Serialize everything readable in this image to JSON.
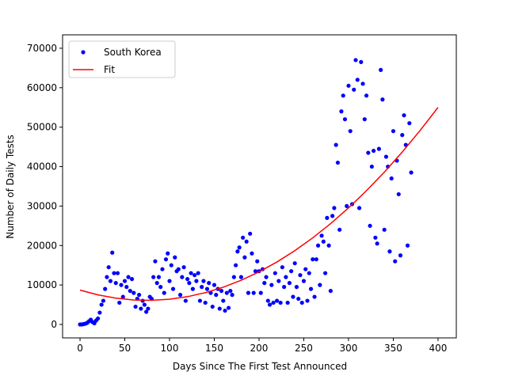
{
  "chart_data": {
    "type": "scatter",
    "xlabel": "Days Since The First Test Announced",
    "ylabel": "Number of Daily Tests",
    "xlim": [
      -19.5,
      420.4
    ],
    "ylim": [
      -3410,
      73400
    ],
    "xticks": [
      0,
      50,
      100,
      150,
      200,
      250,
      300,
      350,
      400
    ],
    "yticks": [
      0,
      10000,
      20000,
      30000,
      40000,
      50000,
      60000,
      70000
    ],
    "legend": "upper left",
    "series": [
      {
        "name": "South Korea",
        "color": "#0000ff",
        "type": "scatter",
        "x": [
          0,
          2,
          4,
          6,
          8,
          10,
          12,
          14,
          16,
          18,
          20,
          22,
          24,
          26,
          28,
          30,
          32,
          34,
          36,
          38,
          40,
          42,
          44,
          46,
          48,
          50,
          52,
          54,
          56,
          58,
          60,
          62,
          64,
          66,
          68,
          70,
          72,
          74,
          76,
          78,
          80,
          82,
          84,
          86,
          88,
          90,
          92,
          94,
          96,
          98,
          100,
          102,
          104,
          106,
          108,
          110,
          112,
          114,
          116,
          118,
          120,
          122,
          124,
          126,
          128,
          130,
          132,
          134,
          136,
          138,
          140,
          142,
          144,
          146,
          148,
          150,
          152,
          154,
          156,
          158,
          160,
          162,
          164,
          166,
          168,
          170,
          172,
          174,
          176,
          178,
          180,
          182,
          184,
          186,
          188,
          190,
          192,
          194,
          196,
          198,
          200,
          202,
          204,
          206,
          208,
          210,
          212,
          214,
          216,
          218,
          220,
          222,
          224,
          226,
          228,
          230,
          232,
          234,
          236,
          238,
          240,
          242,
          244,
          246,
          248,
          250,
          252,
          254,
          256,
          258,
          260,
          262,
          264,
          266,
          268,
          270,
          272,
          274,
          276,
          278,
          280,
          282,
          284,
          286,
          288,
          290,
          292,
          294,
          296,
          298,
          300,
          302,
          304,
          306,
          308,
          310,
          312,
          314,
          316,
          318,
          320,
          322,
          324,
          326,
          328,
          330,
          332,
          334,
          336,
          338,
          340,
          342,
          344,
          346,
          348,
          350,
          352,
          354,
          356,
          358,
          360,
          362,
          364,
          366,
          368,
          370
        ],
        "values": [
          0,
          0,
          100,
          200,
          400,
          800,
          1200,
          600,
          300,
          1000,
          1500,
          3000,
          5000,
          6000,
          9000,
          12000,
          14500,
          11000,
          18200,
          13000,
          10500,
          13000,
          5500,
          10000,
          7000,
          11000,
          9500,
          12000,
          8500,
          11500,
          8000,
          4500,
          6500,
          7500,
          4000,
          6000,
          5000,
          3200,
          4000,
          7000,
          6500,
          12000,
          16000,
          10500,
          12000,
          9500,
          14000,
          8000,
          16500,
          18000,
          11000,
          15000,
          9000,
          17000,
          13500,
          14000,
          7500,
          12000,
          14500,
          6000,
          11500,
          10500,
          13000,
          9000,
          12500,
          11000,
          13000,
          6000,
          9500,
          11000,
          5500,
          9000,
          10500,
          8000,
          4500,
          10000,
          7500,
          9000,
          4000,
          8500,
          6000,
          3500,
          8000,
          4200,
          8500,
          7500,
          12000,
          15000,
          18500,
          19500,
          12000,
          22000,
          17000,
          21000,
          8000,
          23000,
          18000,
          8000,
          13500,
          16000,
          13500,
          8000,
          14000,
          10500,
          12000,
          6000,
          5000,
          10000,
          5500,
          13000,
          6000,
          11000,
          5500,
          14500,
          9500,
          12000,
          5500,
          10500,
          13500,
          7000,
          15500,
          9500,
          6500,
          12500,
          5500,
          11000,
          14000,
          6000,
          13000,
          9000,
          16500,
          7000,
          16500,
          20000,
          10000,
          22500,
          21000,
          13000,
          27000,
          20000,
          8500,
          27500,
          29500,
          45500,
          41000,
          24000,
          54000,
          58000,
          52000,
          30000,
          60500,
          49000,
          30500,
          59500,
          67000,
          62000,
          29500,
          66500,
          61000,
          52000,
          58000,
          43500,
          25000,
          40000,
          44000,
          22000,
          20500,
          44500,
          64500,
          57000,
          24000,
          42500,
          40000,
          18500,
          37000,
          49000,
          16000,
          41500,
          33000,
          17500,
          48000,
          53000,
          45500,
          20000,
          51000,
          38500
        ]
      },
      {
        "name": "Fit",
        "color": "#ff0000",
        "type": "line",
        "x": [
          0,
          20,
          40,
          60,
          80,
          100,
          120,
          140,
          160,
          180,
          200,
          220,
          240,
          260,
          280,
          300,
          320,
          340,
          360,
          380,
          400
        ],
        "values": [
          8700,
          7496,
          6663,
          6200,
          6107,
          6385,
          7033,
          8052,
          9441,
          11200,
          13330,
          15830,
          18701,
          21942,
          25553,
          29535,
          33887,
          38610,
          43703,
          49166,
          55000
        ]
      }
    ]
  }
}
